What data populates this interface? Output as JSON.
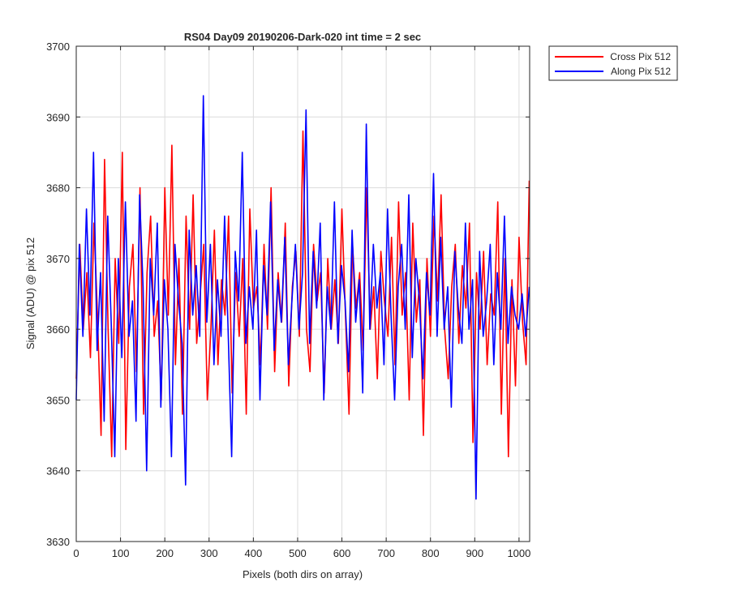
{
  "chart_data": {
    "type": "line",
    "title": "RS04 Day09 20190206-Dark-020 int time = 2 sec",
    "xlabel": "Pixels (both dirs on array)",
    "ylabel": "Signal (ADU) @ pix 512",
    "xlim": [
      0,
      1024
    ],
    "ylim": [
      3630,
      3700
    ],
    "xticks": [
      "0",
      "100",
      "200",
      "300",
      "400",
      "500",
      "600",
      "700",
      "800",
      "900",
      "1000"
    ],
    "yticks": [
      "3630",
      "3640",
      "3650",
      "3660",
      "3670",
      "3680",
      "3690",
      "3700"
    ],
    "grid": true,
    "legend_position": "outside top-right",
    "series": [
      {
        "name": "Cross Pix 512",
        "color": "#ff0000",
        "x": [
          0,
          8,
          16,
          24,
          32,
          40,
          48,
          56,
          64,
          72,
          80,
          88,
          96,
          104,
          112,
          120,
          128,
          136,
          144,
          152,
          160,
          168,
          176,
          184,
          192,
          200,
          208,
          216,
          224,
          232,
          240,
          248,
          256,
          264,
          272,
          280,
          288,
          296,
          304,
          312,
          320,
          328,
          336,
          344,
          352,
          360,
          368,
          376,
          384,
          392,
          400,
          408,
          416,
          424,
          432,
          440,
          448,
          456,
          464,
          472,
          480,
          488,
          496,
          504,
          512,
          520,
          528,
          536,
          544,
          552,
          560,
          568,
          576,
          584,
          592,
          600,
          608,
          616,
          624,
          632,
          640,
          648,
          656,
          664,
          672,
          680,
          688,
          696,
          704,
          712,
          720,
          728,
          736,
          744,
          752,
          760,
          768,
          776,
          784,
          792,
          800,
          808,
          816,
          824,
          832,
          840,
          848,
          856,
          864,
          872,
          880,
          888,
          896,
          904,
          912,
          920,
          928,
          936,
          944,
          952,
          960,
          968,
          976,
          984,
          992,
          1000,
          1008,
          1016,
          1023
        ],
        "y": [
          3653,
          3672,
          3660,
          3668,
          3656,
          3675,
          3662,
          3645,
          3684,
          3660,
          3642,
          3670,
          3658,
          3685,
          3643,
          3666,
          3672,
          3654,
          3680,
          3648,
          3668,
          3676,
          3659,
          3664,
          3650,
          3680,
          3662,
          3686,
          3655,
          3670,
          3648,
          3676,
          3660,
          3679,
          3658,
          3665,
          3672,
          3650,
          3660,
          3674,
          3655,
          3667,
          3662,
          3676,
          3651,
          3668,
          3659,
          3670,
          3648,
          3677,
          3663,
          3666,
          3655,
          3672,
          3660,
          3680,
          3654,
          3668,
          3661,
          3675,
          3652,
          3666,
          3671,
          3659,
          3688,
          3660,
          3654,
          3672,
          3664,
          3668,
          3651,
          3670,
          3660,
          3667,
          3658,
          3677,
          3662,
          3648,
          3672,
          3663,
          3668,
          3657,
          3680,
          3660,
          3666,
          3653,
          3671,
          3664,
          3659,
          3673,
          3655,
          3678,
          3662,
          3668,
          3650,
          3675,
          3661,
          3667,
          3645,
          3670,
          3659,
          3676,
          3664,
          3679,
          3660,
          3653,
          3666,
          3672,
          3658,
          3669,
          3663,
          3675,
          3644,
          3668,
          3660,
          3671,
          3655,
          3665,
          3662,
          3678,
          3648,
          3670,
          3642,
          3667,
          3652,
          3673,
          3661,
          3655,
          3681
        ]
      },
      {
        "name": "Along Pix 512",
        "color": "#0000ff",
        "x": [
          0,
          7,
          15,
          23,
          31,
          39,
          47,
          55,
          63,
          71,
          79,
          87,
          95,
          103,
          111,
          119,
          127,
          135,
          143,
          151,
          159,
          167,
          175,
          183,
          191,
          199,
          207,
          215,
          223,
          231,
          239,
          247,
          255,
          263,
          271,
          279,
          287,
          295,
          303,
          311,
          319,
          327,
          335,
          343,
          351,
          359,
          367,
          375,
          383,
          391,
          399,
          407,
          415,
          423,
          431,
          439,
          447,
          455,
          463,
          471,
          479,
          487,
          495,
          503,
          511,
          519,
          527,
          535,
          543,
          551,
          559,
          567,
          575,
          583,
          591,
          599,
          607,
          615,
          623,
          631,
          639,
          647,
          655,
          663,
          671,
          679,
          687,
          695,
          703,
          711,
          719,
          727,
          735,
          743,
          751,
          759,
          767,
          775,
          783,
          791,
          799,
          807,
          815,
          823,
          831,
          839,
          847,
          855,
          863,
          871,
          879,
          887,
          895,
          903,
          911,
          919,
          927,
          935,
          943,
          951,
          959,
          967,
          975,
          983,
          991,
          999,
          1007,
          1015,
          1023
        ],
        "y": [
          3650,
          3672,
          3659,
          3677,
          3662,
          3685,
          3657,
          3668,
          3647,
          3676,
          3661,
          3642,
          3670,
          3656,
          3678,
          3659,
          3664,
          3647,
          3679,
          3666,
          3640,
          3670,
          3662,
          3675,
          3649,
          3667,
          3660,
          3642,
          3672,
          3664,
          3658,
          3638,
          3674,
          3662,
          3669,
          3659,
          3693,
          3661,
          3672,
          3655,
          3667,
          3659,
          3676,
          3660,
          3642,
          3671,
          3664,
          3685,
          3658,
          3666,
          3660,
          3674,
          3650,
          3669,
          3662,
          3678,
          3657,
          3667,
          3661,
          3673,
          3655,
          3664,
          3672,
          3660,
          3668,
          3691,
          3658,
          3671,
          3663,
          3675,
          3650,
          3666,
          3660,
          3678,
          3658,
          3669,
          3664,
          3654,
          3674,
          3661,
          3667,
          3651,
          3689,
          3660,
          3672,
          3663,
          3668,
          3655,
          3677,
          3662,
          3650,
          3666,
          3672,
          3660,
          3679,
          3656,
          3670,
          3664,
          3653,
          3668,
          3662,
          3682,
          3659,
          3673,
          3660,
          3666,
          3649,
          3671,
          3663,
          3658,
          3675,
          3660,
          3667,
          3636,
          3671,
          3659,
          3664,
          3672,
          3655,
          3668,
          3660,
          3676,
          3658,
          3666,
          3662,
          3660,
          3665,
          3659,
          3666
        ]
      }
    ]
  }
}
